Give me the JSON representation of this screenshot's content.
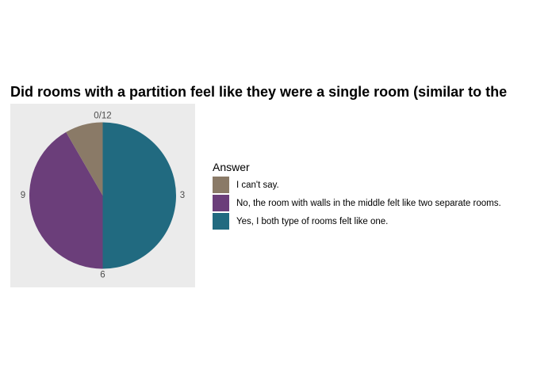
{
  "chart_data": {
    "type": "pie",
    "title": "Did rooms with a partition feel like they were a single room (similar to the",
    "legend_title": "Answer",
    "legend_position": "right",
    "total": 12,
    "slices": [
      {
        "label": "Yes, I both type of rooms felt like one.",
        "value": 6,
        "color": "#216a80"
      },
      {
        "label": "No, the room with walls in the middle felt like two separate rooms.",
        "value": 5,
        "color": "#6b3e7a"
      },
      {
        "label": "I can't say.",
        "value": 1,
        "color": "#8a7a67"
      }
    ],
    "legend_order": [
      2,
      1,
      0
    ],
    "tick_labels": [
      "0/12",
      "3",
      "6",
      "9"
    ],
    "tick_values": [
      0,
      3,
      6,
      9
    ],
    "background": "#ebebeb"
  }
}
